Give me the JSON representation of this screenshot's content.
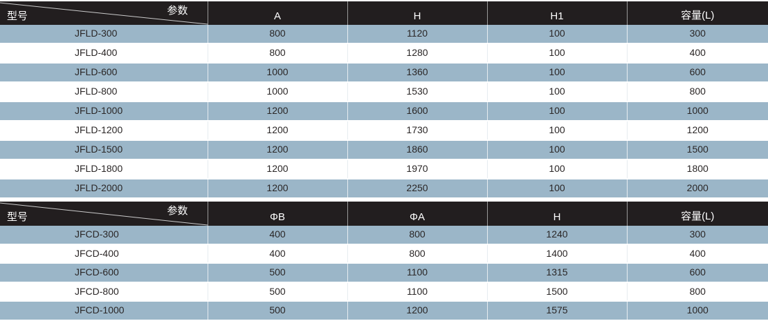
{
  "table1": {
    "corner_param": "参数",
    "corner_model": "型号",
    "headers": [
      "A",
      "H",
      "H1",
      "容量(L)"
    ],
    "rows": [
      [
        "JFLD-300",
        "800",
        "1120",
        "100",
        "300"
      ],
      [
        "JFLD-400",
        "800",
        "1280",
        "100",
        "400"
      ],
      [
        "JFLD-600",
        "1000",
        "1360",
        "100",
        "600"
      ],
      [
        "JFLD-800",
        "1000",
        "1530",
        "100",
        "800"
      ],
      [
        "JFLD-1000",
        "1200",
        "1600",
        "100",
        "1000"
      ],
      [
        "JFLD-1200",
        "1200",
        "1730",
        "100",
        "1200"
      ],
      [
        "JFLD-1500",
        "1200",
        "1860",
        "100",
        "1500"
      ],
      [
        "JFLD-1800",
        "1200",
        "1970",
        "100",
        "1800"
      ],
      [
        "JFLD-2000",
        "1200",
        "2250",
        "100",
        "2000"
      ]
    ]
  },
  "table2": {
    "corner_param": "参数",
    "corner_model": "型号",
    "headers": [
      "ΦB",
      "ΦA",
      "H",
      "容量(L)"
    ],
    "rows": [
      [
        "JFCD-300",
        "400",
        "800",
        "1240",
        "300"
      ],
      [
        "JFCD-400",
        "400",
        "800",
        "1400",
        "400"
      ],
      [
        "JFCD-600",
        "500",
        "1100",
        "1315",
        "600"
      ],
      [
        "JFCD-800",
        "500",
        "1100",
        "1500",
        "800"
      ],
      [
        "JFCD-1000",
        "500",
        "1200",
        "1575",
        "1000"
      ]
    ]
  },
  "colors": {
    "header_bg": "#221e1f",
    "stripe": "#9bb6c8"
  }
}
